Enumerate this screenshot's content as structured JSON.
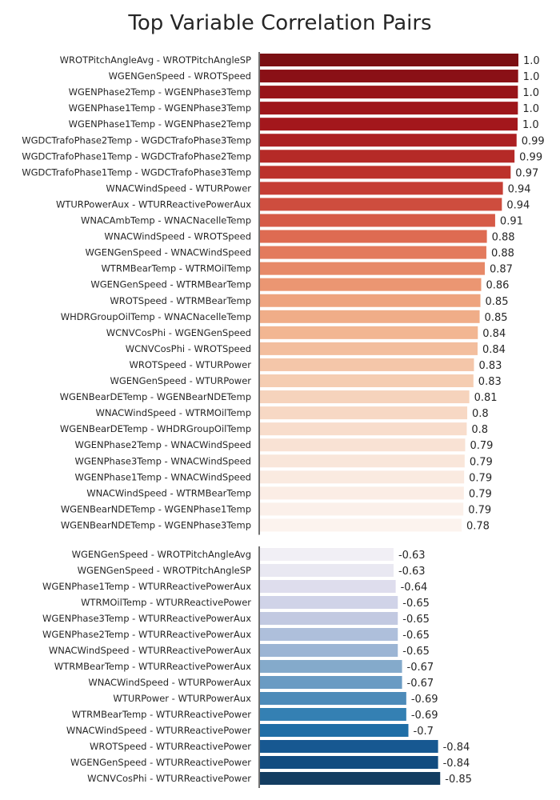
{
  "chart_data": {
    "type": "bar",
    "orientation": "horizontal",
    "title": "Top Variable Correlation Pairs",
    "xlabel": "",
    "ylabel": "",
    "grid": false,
    "panels": [
      {
        "name": "positive",
        "categories": [
          "WROTPitchAngleAvg - WROTPitchAngleSP",
          "WGENGenSpeed - WROTSpeed",
          "WGENPhase2Temp - WGENPhase3Temp",
          "WGENPhase1Temp - WGENPhase3Temp",
          "WGENPhase1Temp - WGENPhase2Temp",
          "WGDCTrafoPhase2Temp - WGDCTrafoPhase3Temp",
          "WGDCTrafoPhase1Temp - WGDCTrafoPhase2Temp",
          "WGDCTrafoPhase1Temp - WGDCTrafoPhase3Temp",
          "WNACWindSpeed - WTURPower",
          "WTURPowerAux - WTURReactivePowerAux",
          "WNACAmbTemp - WNACNacelleTemp",
          "WNACWindSpeed - WROTSpeed",
          "WGENGenSpeed - WNACWindSpeed",
          "WTRMBearTemp - WTRMOilTemp",
          "WGENGenSpeed - WTRMBearTemp",
          "WROTSpeed - WTRMBearTemp",
          "WHDRGroupOilTemp - WNACNacelleTemp",
          "WCNVCosPhi - WGENGenSpeed",
          "WCNVCosPhi - WROTSpeed",
          "WROTSpeed - WTURPower",
          "WGENGenSpeed - WTURPower",
          "WGENBearDETemp - WGENBearNDETemp",
          "WNACWindSpeed - WTRMOilTemp",
          "WGENBearDETemp - WHDRGroupOilTemp",
          "WGENPhase2Temp - WNACWindSpeed",
          "WGENPhase3Temp - WNACWindSpeed",
          "WGENPhase1Temp - WNACWindSpeed",
          "WNACWindSpeed - WTRMBearTemp",
          "WGENBearNDETemp - WGENPhase1Temp",
          "WGENBearNDETemp - WGENPhase3Temp"
        ],
        "values": [
          1.0,
          0.999,
          0.998,
          0.998,
          0.997,
          0.993,
          0.985,
          0.97,
          0.94,
          0.936,
          0.91,
          0.878,
          0.876,
          0.87,
          0.856,
          0.853,
          0.85,
          0.843,
          0.842,
          0.828,
          0.826,
          0.81,
          0.802,
          0.8,
          0.794,
          0.792,
          0.79,
          0.789,
          0.787,
          0.78
        ],
        "value_labels": [
          "1.0",
          "1.0",
          "1.0",
          "1.0",
          "1.0",
          "0.99",
          "0.99",
          "0.97",
          "0.94",
          "0.94",
          "0.91",
          "0.88",
          "0.88",
          "0.87",
          "0.86",
          "0.85",
          "0.85",
          "0.84",
          "0.84",
          "0.83",
          "0.83",
          "0.81",
          "0.8",
          "0.8",
          "0.79",
          "0.79",
          "0.79",
          "0.79",
          "0.79",
          "0.78"
        ],
        "colors": [
          "#7b0f13",
          "#8a1016",
          "#981419",
          "#9e161a",
          "#a3171c",
          "#ac1f22",
          "#b52a27",
          "#bc322b",
          "#c53e35",
          "#ce4d3e",
          "#d65a47",
          "#de6b52",
          "#e37a5d",
          "#e78968",
          "#eb9672",
          "#eea37e",
          "#f0ad88",
          "#f2b692",
          "#f3be9e",
          "#f4c6a9",
          "#f5cdb2",
          "#f6d3bc",
          "#f7d8c4",
          "#f8ddcc",
          "#f9e2d4",
          "#f9e6da",
          "#faeae0",
          "#fbede5",
          "#fbf0ea",
          "#fcf3ee"
        ]
      },
      {
        "name": "negative",
        "categories": [
          "WGENGenSpeed - WROTPitchAngleAvg",
          "WGENGenSpeed - WROTPitchAngleSP",
          "WGENPhase1Temp - WTURReactivePowerAux",
          "WTRMOilTemp - WTURReactivePower",
          "WGENPhase3Temp - WTURReactivePowerAux",
          "WGENPhase2Temp - WTURReactivePowerAux",
          "WNACWindSpeed - WTURReactivePowerAux",
          "WTRMBearTemp - WTURReactivePowerAux",
          "WNACWindSpeed - WTURPowerAux",
          "WTURPower - WTURPowerAux",
          "WTRMBearTemp - WTURReactivePower",
          "WNACWindSpeed - WTURReactivePower",
          "WROTSpeed - WTURReactivePower",
          "WGENGenSpeed - WTURReactivePower",
          "WCNVCosPhi - WTURReactivePower"
        ],
        "values": [
          -0.63,
          -0.63,
          -0.64,
          -0.65,
          -0.65,
          -0.65,
          -0.65,
          -0.67,
          -0.67,
          -0.69,
          -0.69,
          -0.7,
          -0.84,
          -0.84,
          -0.85
        ],
        "value_labels": [
          "-0.63",
          "-0.63",
          "-0.64",
          "-0.65",
          "-0.65",
          "-0.65",
          "-0.65",
          "-0.67",
          "-0.67",
          "-0.69",
          "-0.69",
          "-0.7",
          "-0.84",
          "-0.84",
          "-0.85"
        ],
        "colors": [
          "#f1eff5",
          "#e9e8f2",
          "#dedded",
          "#d0d3e8",
          "#c2c9e1",
          "#aebfdb",
          "#9cb5d4",
          "#84aacb",
          "#6a9bc3",
          "#4d8bb9",
          "#3480b3",
          "#1f6ea6",
          "#175891",
          "#124c80",
          "#133d61"
        ]
      }
    ]
  }
}
